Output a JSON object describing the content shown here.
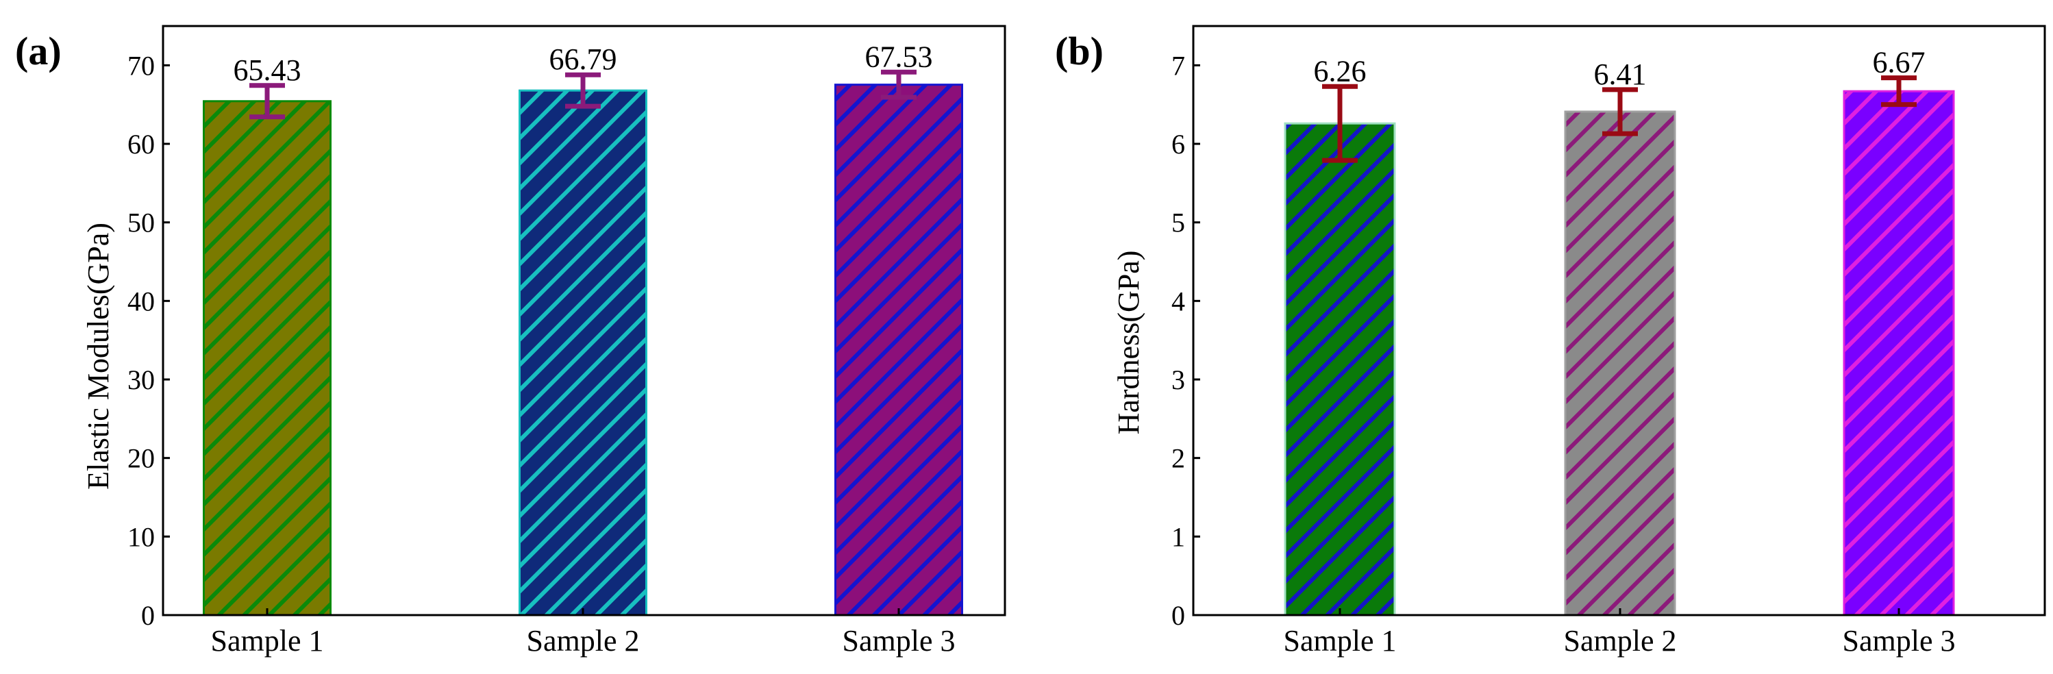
{
  "chart_data": [
    {
      "type": "bar",
      "panel_label": "(a)",
      "title": "",
      "xlabel": "",
      "ylabel": "Elastic Modules(GPa)",
      "ylim": [
        0,
        75
      ],
      "yticks": [
        0,
        10,
        20,
        30,
        40,
        50,
        60,
        70
      ],
      "grid": false,
      "categories": [
        "Sample 1",
        "Sample 2",
        "Sample 3"
      ],
      "values": [
        65.43,
        66.79,
        67.53
      ],
      "errors": [
        2.0,
        2.0,
        1.6
      ],
      "value_labels": [
        "65.43",
        "66.79",
        "67.53"
      ],
      "bar_colors": [
        "#7a7a00",
        "#0f2a7a",
        "#8c0f7a"
      ],
      "hatch_colors": [
        "#0a8a0a",
        "#18c0c0",
        "#1414d0"
      ],
      "edge_colors": [
        "#0a8a0a",
        "#18c0c0",
        "#1414d0"
      ],
      "error_color": "#8b1a7a"
    },
    {
      "type": "bar",
      "panel_label": "(b)",
      "title": "",
      "xlabel": "",
      "ylabel": "Hardness(GPa)",
      "ylim": [
        0,
        7.5
      ],
      "yticks": [
        0,
        1,
        2,
        3,
        4,
        5,
        6,
        7
      ],
      "grid": false,
      "categories": [
        "Sample 1",
        "Sample 2",
        "Sample 3"
      ],
      "values": [
        6.26,
        6.41,
        6.67
      ],
      "errors": [
        0.47,
        0.28,
        0.17
      ],
      "value_labels": [
        "6.26",
        "6.41",
        "6.67"
      ],
      "bar_colors": [
        "#0a7a0a",
        "#8a8a8a",
        "#7a00ff"
      ],
      "hatch_colors": [
        "#1414c8",
        "#8c1a7a",
        "#e020e0"
      ],
      "edge_colors": [
        "#9fe0c0",
        "#a0a0a0",
        "#e020e0"
      ],
      "error_color": "#9a0a14"
    }
  ]
}
